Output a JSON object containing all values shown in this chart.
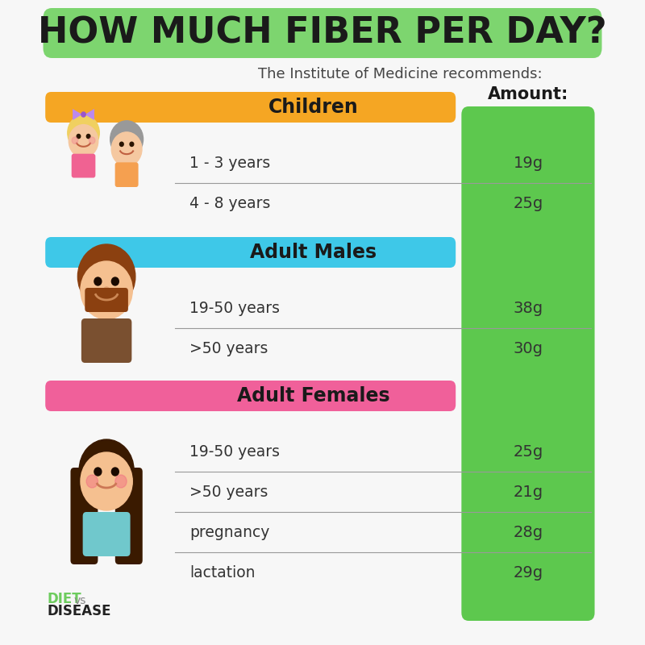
{
  "title": "HOW MUCH FIBER PER DAY?",
  "subtitle": "The Institute of Medicine recommends:",
  "bg_color": "#f7f7f7",
  "header_bg": "#7dd56f",
  "title_color": "#1a1a1a",
  "subtitle_color": "#444444",
  "green_col_color": "#5dc84e",
  "children_header_color": "#f5a623",
  "males_header_color": "#3ec8e8",
  "females_header_color": "#f0609a",
  "header_text_color": "#1a1a1a",
  "row_text_color": "#333333",
  "divider_color": "#999999",
  "categories": [
    {
      "name": "Children",
      "header_color": "#f5a623",
      "rows": [
        {
          "label": "1 - 3 years",
          "amount": "19g"
        },
        {
          "label": "4 - 8 years",
          "amount": "25g"
        }
      ]
    },
    {
      "name": "Adult Males",
      "header_color": "#3ec8e8",
      "rows": [
        {
          "label": "19-50 years",
          "amount": "38g"
        },
        {
          "label": ">50 years",
          "amount": "30g"
        }
      ]
    },
    {
      "name": "Adult Females",
      "header_color": "#f0609a",
      "rows": [
        {
          "label": "19-50 years",
          "amount": "25g"
        },
        {
          "label": ">50 years",
          "amount": "21g"
        },
        {
          "label": "pregnancy",
          "amount": "28g"
        },
        {
          "label": "lactation",
          "amount": "29g"
        }
      ]
    }
  ],
  "amount_header": "Amount:",
  "diet_color": "#6dcc5e",
  "vs_color": "#888888",
  "disease_color": "#222222"
}
